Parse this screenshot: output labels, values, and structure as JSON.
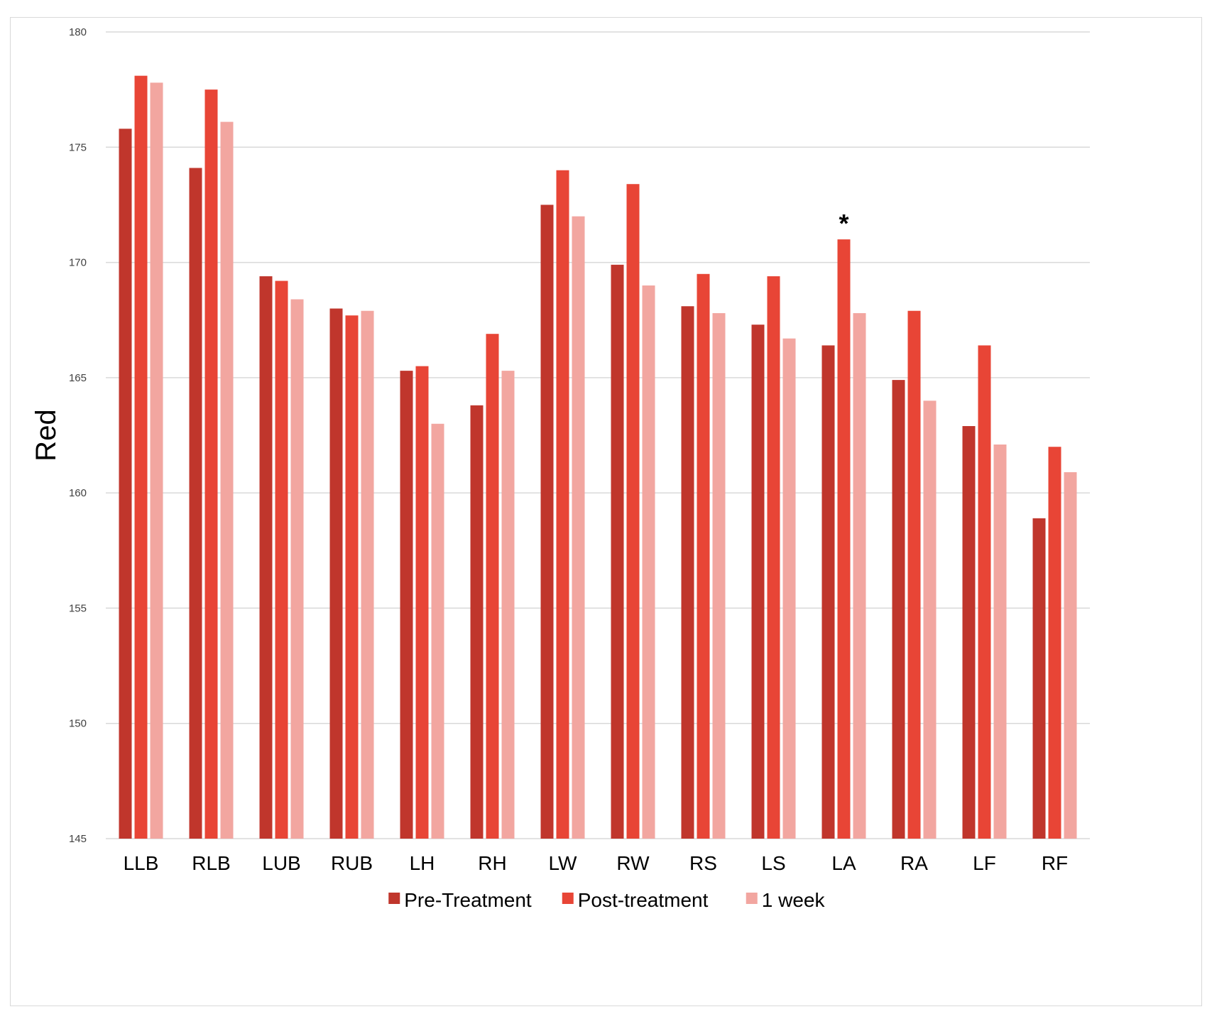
{
  "chart_data": {
    "type": "bar",
    "title": "",
    "xlabel": "",
    "ylabel": "Red",
    "ylim": [
      145,
      180
    ],
    "yticks": [
      145,
      150,
      155,
      160,
      165,
      170,
      175,
      180
    ],
    "grid": true,
    "legend_position": "bottom",
    "categories": [
      "LLB",
      "RLB",
      "LUB",
      "RUB",
      "LH",
      "RH",
      "LW",
      "RW",
      "RS",
      "LS",
      "LA",
      "RA",
      "LF",
      "RF"
    ],
    "series": [
      {
        "name": "Pre-Treatment",
        "color": "#c0362c",
        "values": [
          175.8,
          174.1,
          169.4,
          168.0,
          165.3,
          163.8,
          172.5,
          169.9,
          168.1,
          167.3,
          166.4,
          164.9,
          162.9,
          158.9
        ]
      },
      {
        "name": "Post-treatment",
        "color": "#e84536",
        "values": [
          178.1,
          177.5,
          169.2,
          167.7,
          165.5,
          166.9,
          174.0,
          173.4,
          169.5,
          169.4,
          171.0,
          167.9,
          166.4,
          162.0
        ]
      },
      {
        "name": "1 week",
        "color": "#f2a6a0",
        "values": [
          177.8,
          176.1,
          168.4,
          167.9,
          163.0,
          165.3,
          172.0,
          169.0,
          167.8,
          166.7,
          167.8,
          164.0,
          162.1,
          160.9
        ]
      }
    ],
    "annotations": [
      {
        "text": "*",
        "category": "LA",
        "series": "Post-treatment"
      }
    ]
  }
}
